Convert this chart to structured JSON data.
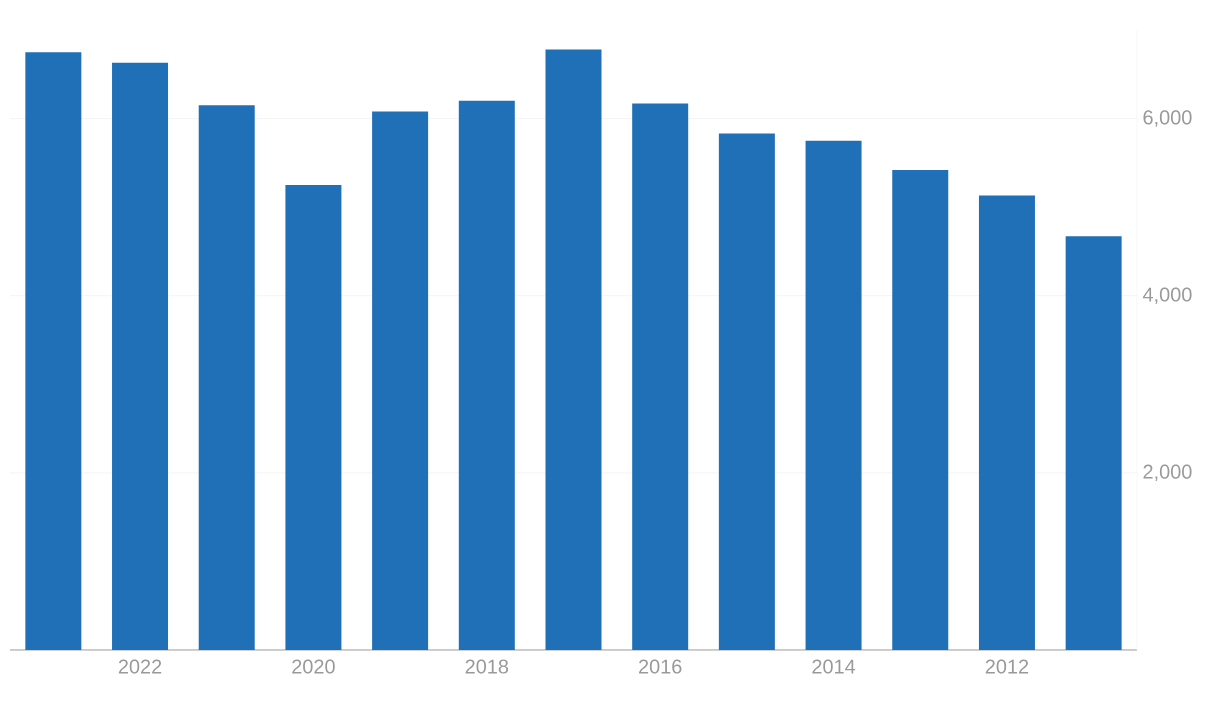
{
  "chart_data": {
    "type": "bar",
    "x": [
      2023,
      2022,
      2021,
      2020,
      2019,
      2018,
      2017,
      2016,
      2015,
      2014,
      2013,
      2012,
      2011
    ],
    "values": [
      6750,
      6630,
      6150,
      5250,
      6080,
      6200,
      6780,
      6170,
      5830,
      5750,
      5420,
      5130,
      4670
    ],
    "color": "#2070b8",
    "xlim": [
      2023.5,
      2010.5
    ],
    "xticks": [
      2022,
      2020,
      2018,
      2016,
      2014,
      2012
    ],
    "ylim": [
      0,
      7000
    ],
    "yticks": [
      {
        "value": 2000,
        "label": "2,000"
      },
      {
        "value": 4000,
        "label": "4,000"
      },
      {
        "value": 6000,
        "label": "6,000"
      }
    ],
    "grid": "y"
  }
}
